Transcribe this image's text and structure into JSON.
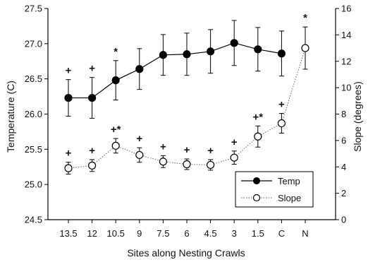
{
  "chart_data": {
    "type": "line",
    "xlabel": "Sites along Nesting Crawls",
    "ylabel_left": "Temperature (C)",
    "ylabel_right": "Slope (degrees)",
    "categories": [
      "13.5",
      "12",
      "10.5",
      "9",
      "7.5",
      "6",
      "4.5",
      "3",
      "1.5",
      "C",
      "N"
    ],
    "ylim_left": [
      24.5,
      27.5
    ],
    "yticks_left": [
      "24.5",
      "25.0",
      "25.5",
      "26.0",
      "26.5",
      "27.0",
      "27.5"
    ],
    "ylim_right": [
      0,
      16
    ],
    "yticks_right": [
      "0",
      "2",
      "4",
      "6",
      "8",
      "10",
      "12",
      "14",
      "16"
    ],
    "legend_position": "bottom-right",
    "series": [
      {
        "name": "Temp",
        "axis": "left",
        "style": "solid-line-filled-circle",
        "color": "#000000",
        "values": [
          26.23,
          26.23,
          26.48,
          26.64,
          26.84,
          26.85,
          26.89,
          27.01,
          26.92,
          26.86,
          null
        ],
        "errors": [
          0.26,
          0.29,
          0.28,
          0.29,
          0.29,
          0.3,
          0.31,
          0.32,
          0.31,
          0.32,
          null
        ],
        "markers": [
          "+",
          "+",
          "*",
          "",
          "",
          "",
          "",
          "",
          "",
          "",
          ""
        ]
      },
      {
        "name": "Slope",
        "axis": "right",
        "style": "dotted-line-open-circle",
        "color": "#000000",
        "values": [
          3.9,
          4.1,
          5.6,
          4.9,
          4.4,
          4.2,
          4.15,
          4.7,
          6.3,
          7.3,
          13.0
        ],
        "errors": [
          0.45,
          0.45,
          0.55,
          0.55,
          0.45,
          0.4,
          0.4,
          0.5,
          0.8,
          0.75,
          1.6
        ],
        "markers": [
          "+",
          "+",
          "+*",
          "+",
          "+",
          "+",
          "+",
          "+",
          "+*",
          "+",
          "*"
        ]
      }
    ]
  }
}
